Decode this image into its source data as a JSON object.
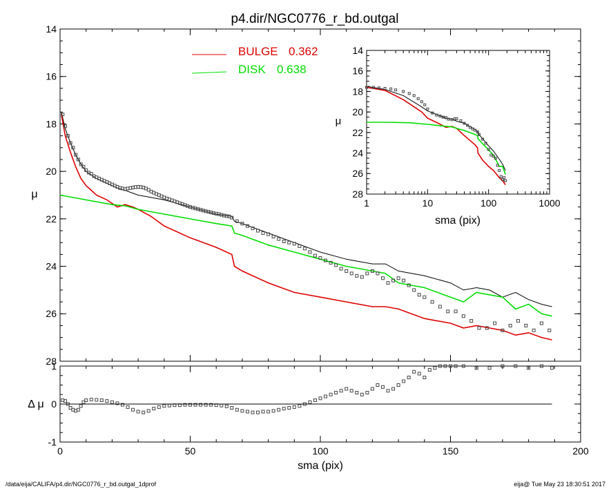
{
  "title": "p4.dir/NGC0776_r_bd.outgal",
  "footer_left": "/data/eija/CALIFA/p4.dir/NGC0776_r_bd.outgal_1dprof",
  "footer_right": "eija@  Tue May 23 18:30:51 2017",
  "colors": {
    "total": "#000000",
    "bulge": "#dd0000",
    "disk": "#00dd00",
    "data": "#444444"
  },
  "chart_data": [
    {
      "type": "line",
      "name": "main",
      "xlabel": "sma (pix)",
      "ylabel": "μ",
      "xlim": [
        0,
        200
      ],
      "ylim": [
        28,
        14
      ],
      "yticks": [
        14,
        16,
        18,
        20,
        22,
        24,
        26,
        28
      ],
      "legend": [
        {
          "label": "BULGE",
          "value": "0.362",
          "color": "#dd0000"
        },
        {
          "label": "DISK",
          "value": "0.638",
          "color": "#00dd00"
        }
      ],
      "legend_position": "top",
      "series": [
        {
          "key": "total",
          "color": "#000000",
          "x": [
            0.5,
            2,
            4,
            6,
            8,
            10,
            14,
            18,
            22,
            25,
            30,
            35,
            40,
            50,
            60,
            66,
            67,
            70,
            80,
            90,
            100,
            110,
            120,
            125,
            130,
            140,
            150,
            155,
            160,
            165,
            170,
            175,
            180,
            185,
            189
          ],
          "y": [
            17.5,
            18.2,
            18.8,
            19.3,
            19.7,
            20,
            20.3,
            20.5,
            20.7,
            20.8,
            21,
            21.1,
            21.2,
            21.5,
            21.8,
            21.9,
            22.1,
            22.2,
            22.6,
            23,
            23.4,
            23.7,
            23.9,
            23.9,
            24.2,
            24.4,
            24.7,
            25,
            24.9,
            25,
            25.3,
            25.1,
            25.4,
            25.6,
            25.7
          ]
        },
        {
          "key": "bulge",
          "color": "#dd0000",
          "x": [
            0.5,
            2,
            4,
            6,
            8,
            10,
            14,
            18,
            22,
            25,
            28,
            30,
            35,
            40,
            50,
            60,
            66,
            67,
            70,
            80,
            90,
            100,
            110,
            120,
            125,
            130,
            140,
            150,
            155,
            160,
            165,
            170,
            175,
            180,
            185,
            189
          ],
          "y": [
            17.6,
            18.5,
            19.2,
            19.8,
            20.3,
            20.6,
            21,
            21.2,
            21.5,
            21.4,
            21.5,
            21.6,
            21.9,
            22.3,
            22.8,
            23.2,
            23.5,
            24,
            24.2,
            24.7,
            25.1,
            25.3,
            25.5,
            25.7,
            25.7,
            25.8,
            26.2,
            26.4,
            26.6,
            26.5,
            26.6,
            26.7,
            26.9,
            26.8,
            27,
            27.1
          ]
        },
        {
          "key": "disk",
          "color": "#00dd00",
          "x": [
            0,
            10,
            20,
            25,
            30,
            40,
            50,
            60,
            66,
            67,
            70,
            80,
            90,
            100,
            110,
            120,
            125,
            130,
            140,
            150,
            155,
            160,
            165,
            170,
            175,
            180,
            185,
            189
          ],
          "y": [
            21,
            21.2,
            21.4,
            21.45,
            21.6,
            21.8,
            22,
            22.2,
            22.3,
            22.6,
            22.7,
            23.1,
            23.4,
            23.7,
            24,
            24.2,
            24.3,
            24.7,
            24.9,
            25.3,
            25.5,
            25.1,
            25.2,
            25.3,
            25.8,
            25.6,
            26,
            26.1
          ]
        },
        {
          "key": "data",
          "color": "#444444",
          "x": [
            1,
            2,
            3,
            4,
            5,
            6,
            7,
            8,
            9,
            10,
            11,
            12,
            13,
            14,
            15,
            16,
            17,
            18,
            19,
            20,
            21,
            22,
            23,
            24,
            25,
            26,
            27,
            28,
            29,
            30,
            31,
            32,
            33,
            34,
            35,
            36,
            37,
            38,
            39,
            40,
            41,
            42,
            43,
            44,
            45,
            46,
            47,
            48,
            49,
            50,
            51,
            52,
            53,
            54,
            55,
            56,
            57,
            58,
            59,
            60,
            61,
            62,
            63,
            64,
            65,
            66,
            68,
            70,
            72,
            74,
            76,
            78,
            80,
            82,
            84,
            86,
            88,
            90,
            92,
            94,
            96,
            98,
            100,
            102,
            104,
            106,
            108,
            110,
            112,
            114,
            116,
            118,
            120,
            122,
            124,
            126,
            128,
            130,
            132,
            134,
            136,
            138,
            140,
            143,
            146,
            149,
            152,
            155,
            158,
            161,
            164,
            167,
            170,
            173,
            176,
            179,
            182,
            185,
            188
          ],
          "y": [
            17.6,
            18.1,
            18.5,
            18.8,
            19,
            19.3,
            19.5,
            19.7,
            19.8,
            19.95,
            20.05,
            20.1,
            20.2,
            20.25,
            20.3,
            20.35,
            20.4,
            20.45,
            20.5,
            20.55,
            20.6,
            20.65,
            20.7,
            20.72,
            20.75,
            20.72,
            20.7,
            20.68,
            20.66,
            20.65,
            20.66,
            20.68,
            20.72,
            20.78,
            20.85,
            20.9,
            20.95,
            21,
            21.05,
            21.1,
            21.14,
            21.18,
            21.22,
            21.26,
            21.3,
            21.34,
            21.38,
            21.42,
            21.46,
            21.5,
            21.53,
            21.56,
            21.59,
            21.62,
            21.65,
            21.68,
            21.7,
            21.73,
            21.76,
            21.78,
            21.8,
            21.83,
            21.86,
            21.88,
            21.9,
            21.95,
            22.1,
            22.2,
            22.3,
            22.4,
            22.5,
            22.6,
            22.65,
            22.75,
            22.85,
            22.95,
            23,
            23.05,
            23.15,
            23.25,
            23.4,
            23.55,
            23.65,
            23.75,
            23.85,
            23.95,
            24.1,
            24.2,
            24.3,
            24.4,
            24.45,
            24.3,
            24.2,
            24.3,
            24.5,
            24.7,
            24.6,
            24.5,
            24.6,
            24.8,
            25,
            25.2,
            25.3,
            25.5,
            25.7,
            25.9,
            25.9,
            26.1,
            26.3,
            26.6,
            26.6,
            26.4,
            26.7,
            26.5,
            26.3,
            26.5,
            26.7,
            26.4,
            26.7
          ]
        }
      ]
    },
    {
      "type": "line",
      "name": "residual",
      "xlabel": "sma (pix)",
      "ylabel": "Δ μ",
      "xlim": [
        0,
        200
      ],
      "ylim": [
        -1,
        1
      ],
      "xticks": [
        0,
        50,
        100,
        150,
        200
      ],
      "yticks": [
        1,
        0,
        -1
      ],
      "series": [
        {
          "key": "delta",
          "color": "#444444",
          "x": [
            1,
            2,
            3,
            4,
            5,
            6,
            7,
            8,
            9,
            10,
            12,
            14,
            16,
            18,
            20,
            22,
            24,
            26,
            28,
            30,
            32,
            34,
            36,
            38,
            40,
            42,
            44,
            46,
            48,
            50,
            52,
            54,
            56,
            58,
            60,
            62,
            64,
            66,
            68,
            70,
            72,
            74,
            76,
            78,
            80,
            82,
            84,
            86,
            88,
            90,
            92,
            94,
            96,
            98,
            100,
            102,
            104,
            106,
            108,
            110,
            112,
            114,
            116,
            118,
            120,
            122,
            124,
            126,
            128,
            130,
            132,
            134,
            136,
            138,
            140,
            142,
            144,
            146,
            148,
            150,
            152,
            155,
            160,
            165,
            170,
            175,
            180,
            185,
            189
          ],
          "y": [
            0.1,
            0.08,
            0,
            -0.1,
            -0.15,
            -0.18,
            -0.15,
            -0.05,
            0.05,
            0.1,
            0.12,
            0.11,
            0.1,
            0.08,
            0.05,
            0.02,
            -0.02,
            -0.08,
            -0.15,
            -0.2,
            -0.22,
            -0.18,
            -0.12,
            -0.08,
            -0.05,
            -0.04,
            -0.03,
            -0.03,
            -0.02,
            -0.02,
            -0.02,
            -0.02,
            -0.02,
            -0.02,
            -0.03,
            -0.04,
            -0.06,
            -0.1,
            -0.15,
            -0.18,
            -0.2,
            -0.22,
            -0.22,
            -0.2,
            -0.2,
            -0.18,
            -0.15,
            -0.12,
            -0.1,
            -0.08,
            -0.05,
            0,
            0.05,
            0.1,
            0.15,
            0.2,
            0.25,
            0.3,
            0.35,
            0.4,
            0.35,
            0.3,
            0.25,
            0.3,
            0.4,
            0.5,
            0.45,
            0.35,
            0.4,
            0.5,
            0.6,
            0.7,
            0.85,
            0.8,
            0.7,
            0.9,
            0.95,
            1,
            1,
            1,
            1,
            1,
            0.95,
            0.95,
            1,
            1,
            0.95,
            1,
            0.95
          ]
        },
        {
          "key": "zero",
          "color": "#000000",
          "x": [
            1,
            189
          ],
          "y": [
            0,
            0
          ]
        }
      ]
    },
    {
      "type": "line",
      "name": "inset",
      "xlabel": "sma (pix)",
      "ylabel": "μ",
      "xscale": "log",
      "xlim": [
        1,
        1000
      ],
      "xticks": [
        1,
        10,
        100,
        1000
      ],
      "ylim": [
        28,
        14
      ],
      "yticks": [
        14,
        16,
        18,
        20,
        22,
        24,
        26,
        28
      ],
      "series": [
        {
          "key": "total",
          "color": "#000000",
          "x": [
            1,
            2,
            4,
            8,
            10,
            15,
            20,
            25,
            30,
            40,
            60,
            66,
            67,
            80,
            100,
            120,
            150,
            170,
            189
          ],
          "y": [
            17.5,
            17.8,
            18.4,
            19.5,
            19.9,
            20.3,
            20.6,
            20.7,
            20.9,
            21.1,
            21.7,
            21.9,
            22.1,
            22.6,
            23.3,
            23.8,
            24.6,
            25.1,
            25.7
          ]
        },
        {
          "key": "bulge",
          "color": "#dd0000",
          "x": [
            1,
            2,
            4,
            6,
            8,
            10,
            15,
            20,
            25,
            30,
            40,
            60,
            66,
            67,
            80,
            100,
            120,
            150,
            170,
            189
          ],
          "y": [
            17.6,
            17.9,
            18.8,
            19.5,
            20,
            20.6,
            21.1,
            21.5,
            21.4,
            21.6,
            22.3,
            23.2,
            23.5,
            24,
            24.7,
            25.3,
            25.7,
            26.4,
            26.7,
            27.1
          ]
        },
        {
          "key": "disk",
          "color": "#00dd00",
          "x": [
            1,
            2,
            5,
            10,
            20,
            25,
            30,
            40,
            60,
            66,
            67,
            80,
            100,
            120,
            150,
            170,
            189
          ],
          "y": [
            21,
            21,
            21.05,
            21.2,
            21.4,
            21.45,
            21.6,
            21.8,
            22.2,
            22.3,
            22.6,
            23.1,
            23.7,
            24.2,
            25.3,
            25.3,
            26.1
          ]
        },
        {
          "key": "data",
          "color": "#444444",
          "x": [
            1,
            1.3,
            1.6,
            2,
            2.5,
            3,
            4,
            5,
            6,
            7,
            8,
            9,
            10,
            12,
            14,
            16,
            18,
            20,
            22,
            25,
            28,
            30,
            35,
            40,
            45,
            50,
            55,
            60,
            66,
            70,
            80,
            90,
            100,
            110,
            120,
            130,
            140,
            150,
            160,
            170,
            180,
            189
          ],
          "y": [
            17.6,
            17.6,
            17.65,
            17.7,
            17.75,
            17.85,
            18,
            18.2,
            18.4,
            18.7,
            19,
            19.3,
            19.7,
            20.1,
            20.3,
            20.4,
            20.5,
            20.55,
            20.7,
            20.75,
            20.66,
            20.65,
            20.85,
            21.1,
            21.3,
            21.5,
            21.65,
            21.78,
            21.95,
            22.2,
            22.65,
            23.05,
            23.65,
            24.2,
            24.3,
            24.5,
            25.2,
            25.7,
            26.3,
            26.6,
            26.4,
            26.7
          ]
        }
      ]
    }
  ]
}
